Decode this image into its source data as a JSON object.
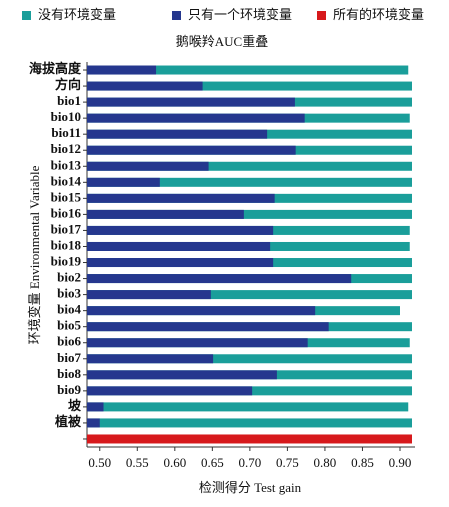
{
  "chart_data": {
    "type": "bar",
    "orientation": "horizontal",
    "overlap": true,
    "title": "鹅喉羚AUC重叠",
    "xlabel": "检测得分 Test gain",
    "ylabel": "环境变量 Environmental Variable",
    "categories": [
      "海拔高度",
      "方向",
      "bio1",
      "bio10",
      "bio11",
      "bio12",
      "bio13",
      "bio14",
      "bio15",
      "bio16",
      "bio17",
      "bio18",
      "bio19",
      "bio2",
      "bio3",
      "bio4",
      "bio5",
      "bio6",
      "bio7",
      "bio8",
      "bio9",
      "坡",
      "植被",
      null
    ],
    "series": [
      {
        "name": "没有环境变量",
        "color": "#1a9e9a",
        "values": [
          0.911,
          0.916,
          0.916,
          0.913,
          0.916,
          0.916,
          0.916,
          0.916,
          0.916,
          0.916,
          0.913,
          0.913,
          0.916,
          0.916,
          0.916,
          0.9,
          0.916,
          0.913,
          0.916,
          0.916,
          0.916,
          0.911,
          0.916,
          null
        ]
      },
      {
        "name": "只有一个环境变量",
        "color": "#25378e",
        "values": [
          0.575,
          0.637,
          0.76,
          0.773,
          0.723,
          0.761,
          0.645,
          0.58,
          0.733,
          0.692,
          0.731,
          0.727,
          0.731,
          0.835,
          0.648,
          0.787,
          0.805,
          0.777,
          0.651,
          0.736,
          0.703,
          0.505,
          0.5,
          null
        ]
      },
      {
        "name": "所有的环境变量",
        "color": "#d7191c",
        "values": [
          null,
          null,
          null,
          null,
          null,
          null,
          null,
          null,
          null,
          null,
          null,
          null,
          null,
          null,
          null,
          null,
          null,
          null,
          null,
          null,
          null,
          null,
          null,
          0.916
        ]
      }
    ],
    "xlim": [
      0.483,
      0.92
    ],
    "xticks": [
      {
        "value": 0.5,
        "label": "0.50"
      },
      {
        "value": 0.55,
        "label": "0.55"
      },
      {
        "value": 0.6,
        "label": "0.60"
      },
      {
        "value": 0.65,
        "label": "0.65"
      },
      {
        "value": 0.7,
        "label": "0.70"
      },
      {
        "value": 0.75,
        "label": "0.75"
      },
      {
        "value": 0.8,
        "label": "0.80"
      },
      {
        "value": 0.85,
        "label": "0.85"
      },
      {
        "value": 0.9,
        "label": "0.90"
      }
    ],
    "grid": false
  }
}
